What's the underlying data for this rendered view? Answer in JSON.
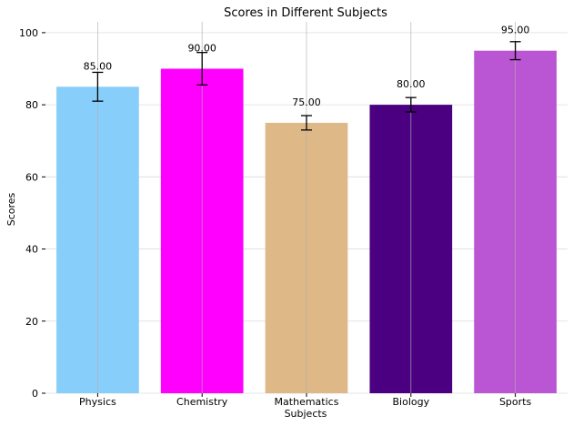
{
  "chart_data": {
    "type": "bar",
    "title": "Scores in Different Subjects",
    "xlabel": "Subjects",
    "ylabel": "Scores",
    "categories": [
      "Physics",
      "Chemistry",
      "Mathematics",
      "Biology",
      "Sports"
    ],
    "values": [
      85,
      90,
      75,
      80,
      95
    ],
    "error": [
      4,
      4.5,
      2,
      2,
      2.5
    ],
    "data_labels": [
      "85.00",
      "90.00",
      "75.00",
      "80.00",
      "95.00"
    ],
    "colors": [
      "#87cefa",
      "#ff00ff",
      "#deb887",
      "#4b0082",
      "#ba55d3"
    ],
    "ylim": [
      0,
      103
    ],
    "yticks": [
      0,
      20,
      40,
      60,
      80,
      100
    ],
    "ytick_labels": [
      "0",
      "20",
      "40",
      "60",
      "80",
      "100"
    ],
    "grid": true,
    "legend": "none"
  }
}
